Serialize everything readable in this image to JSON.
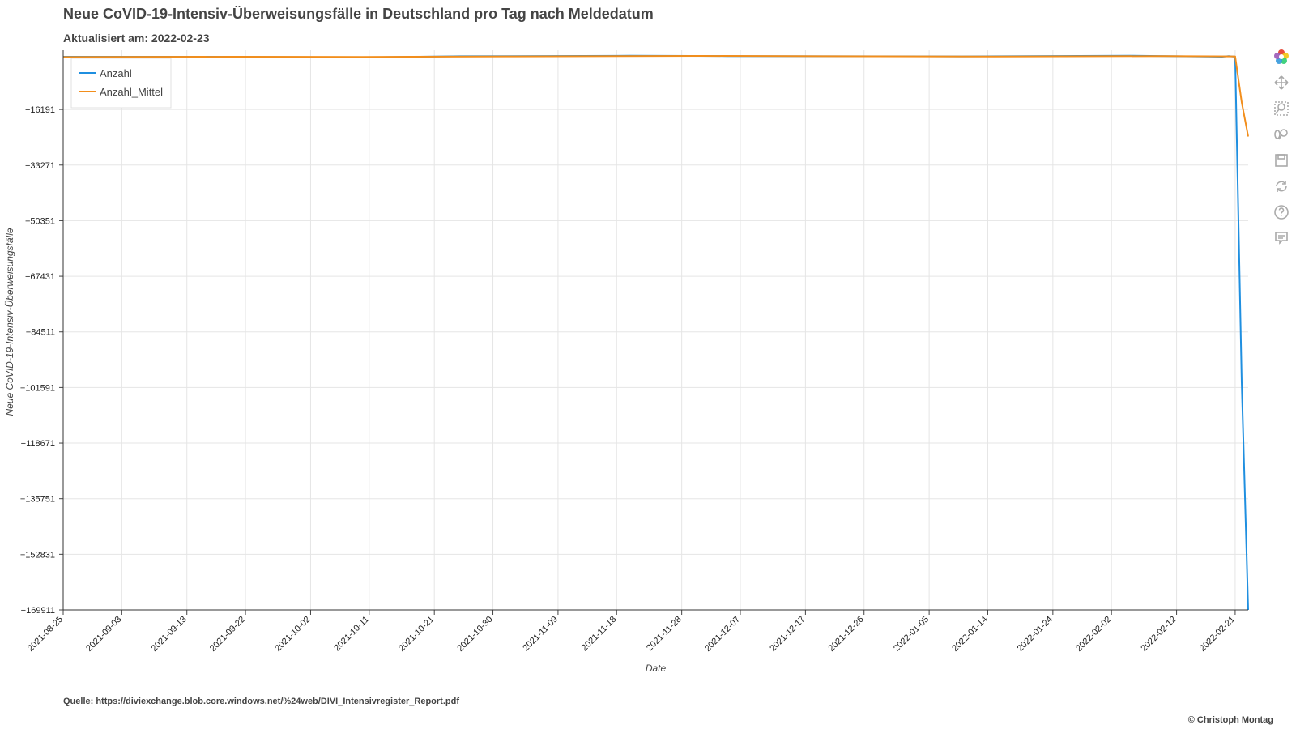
{
  "chart_data": {
    "type": "line",
    "title": "Neue CoVID-19-Intensiv-Überweisungsfälle in Deutschland pro Tag nach Meldedatum",
    "subtitle": "Aktualisiert am: 2022-02-23",
    "xlabel": "Date",
    "ylabel": "Neue CoVID-19-Intensiv-Überweisungsfälle",
    "xlim": [
      "2021-08-25",
      "2022-02-23"
    ],
    "ylim": [
      -169911,
      2000
    ],
    "y_ticks": [
      -16191,
      -33271,
      -50351,
      -67431,
      -84511,
      -101591,
      -118671,
      -135751,
      -152831,
      -169911
    ],
    "x_ticks": [
      "2021-08-25",
      "2021-09-03",
      "2021-09-13",
      "2021-09-22",
      "2021-10-02",
      "2021-10-11",
      "2021-10-21",
      "2021-10-30",
      "2021-11-09",
      "2021-11-18",
      "2021-11-28",
      "2021-12-07",
      "2021-12-17",
      "2021-12-26",
      "2022-01-05",
      "2022-01-14",
      "2022-01-24",
      "2022-02-02",
      "2022-02-12",
      "2022-02-21"
    ],
    "grid": true,
    "legend_position": "top-left",
    "series": [
      {
        "name": "Anzahl",
        "color": "#1f8fe0",
        "points": [
          [
            "2021-08-25",
            0
          ],
          [
            "2021-09-15",
            0
          ],
          [
            "2021-10-10",
            -200
          ],
          [
            "2021-10-25",
            150
          ],
          [
            "2021-11-20",
            300
          ],
          [
            "2021-12-05",
            200
          ],
          [
            "2021-12-20",
            150
          ],
          [
            "2022-01-10",
            100
          ],
          [
            "2022-02-05",
            300
          ],
          [
            "2022-02-19",
            0
          ],
          [
            "2022-02-20",
            200
          ],
          [
            "2022-02-21",
            0
          ],
          [
            "2022-02-22",
            -100000
          ],
          [
            "2022-02-23",
            -169911
          ]
        ]
      },
      {
        "name": "Anzahl_Mittel",
        "color": "#f28e1c",
        "points": [
          [
            "2021-08-25",
            -100
          ],
          [
            "2021-09-20",
            0
          ],
          [
            "2021-10-10",
            -50
          ],
          [
            "2021-11-01",
            100
          ],
          [
            "2021-12-01",
            250
          ],
          [
            "2021-12-20",
            150
          ],
          [
            "2022-01-15",
            50
          ],
          [
            "2022-02-10",
            200
          ],
          [
            "2022-02-21",
            100
          ],
          [
            "2022-02-22",
            -14000
          ],
          [
            "2022-02-23",
            -24500
          ]
        ]
      }
    ]
  },
  "source_text": "Quelle: https://diviexchange.blob.core.windows.net/%24web/DIVI_Intensivregister_Report.pdf",
  "credit_text": "© Christoph Montag",
  "toolbar": {
    "tools": [
      "bokeh-logo-icon",
      "pan-icon",
      "box-zoom-icon",
      "wheel-zoom-icon",
      "save-icon",
      "reset-icon",
      "help-icon",
      "hover-icon"
    ]
  }
}
